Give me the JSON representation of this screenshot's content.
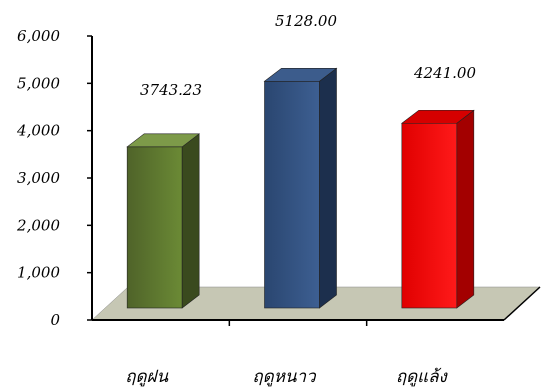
{
  "chart_data": {
    "type": "bar",
    "style": "3d-column",
    "categories": [
      "ฤดูฝน",
      "ฤดูหนาว",
      "ฤดูแล้ง"
    ],
    "values": [
      3743.23,
      5128.0,
      4241.0
    ],
    "data_labels": [
      "3743.23",
      "5128.00",
      "4241.00"
    ],
    "y_ticks": [
      "0",
      "1,000",
      "2,000",
      "3,000",
      "4,000",
      "5,000",
      "6,000"
    ],
    "ylim": [
      0,
      6000
    ],
    "title": "",
    "xlabel": "",
    "ylabel": "",
    "legend": "none",
    "grid": false,
    "colors": [
      "#556b2f",
      "#2f4f7f",
      "#e00000"
    ],
    "floor_color": "#c6c7b4"
  }
}
